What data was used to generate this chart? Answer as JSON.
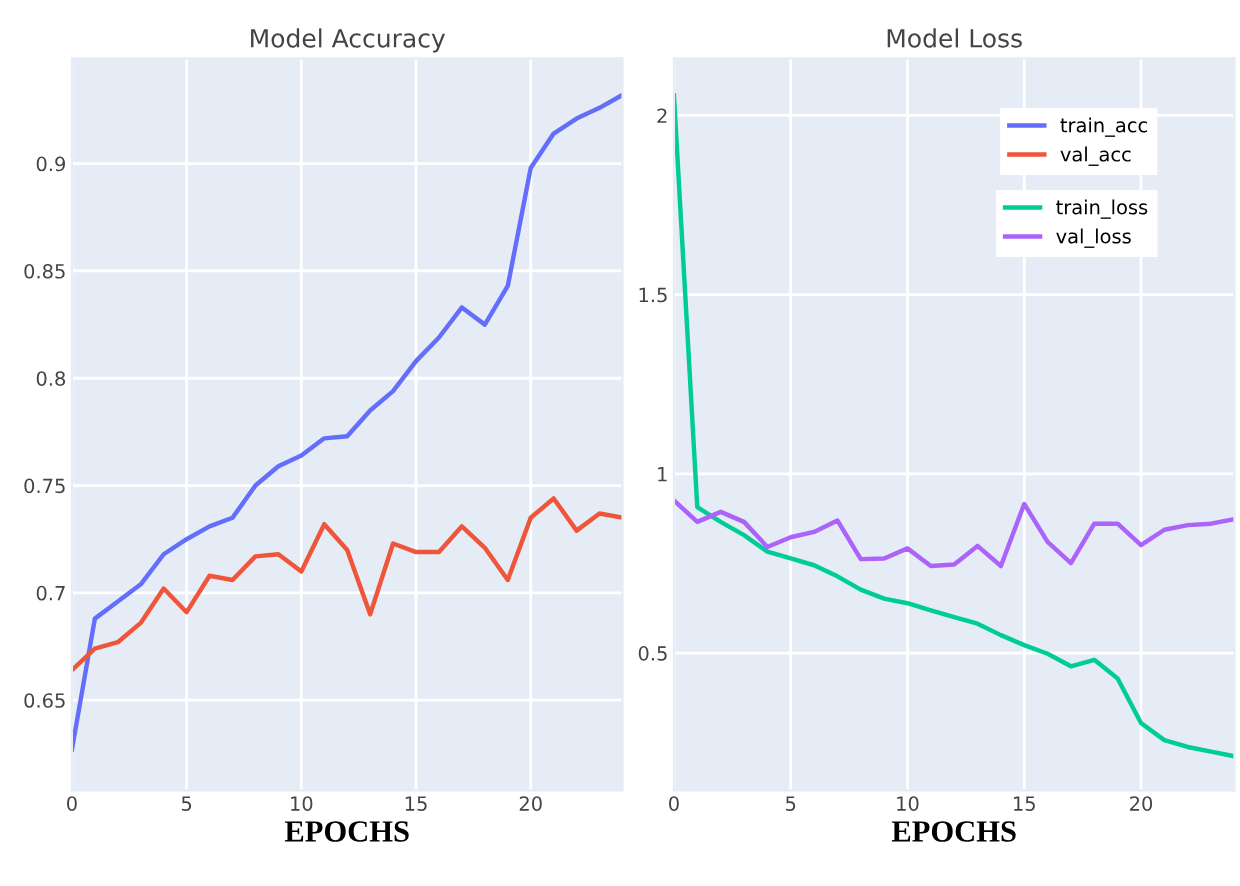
{
  "chart_data": [
    {
      "type": "line",
      "title": "Model Accuracy",
      "xlabel": "EPOCHS",
      "x": [
        0,
        1,
        2,
        3,
        4,
        5,
        6,
        7,
        8,
        9,
        10,
        11,
        12,
        13,
        14,
        15,
        16,
        17,
        18,
        19,
        20,
        21,
        22,
        23,
        24
      ],
      "series": [
        {
          "name": "train_acc",
          "color": "#636efa",
          "values": [
            0.627,
            0.688,
            0.696,
            0.704,
            0.718,
            0.725,
            0.731,
            0.735,
            0.75,
            0.759,
            0.764,
            0.772,
            0.773,
            0.785,
            0.794,
            0.808,
            0.819,
            0.833,
            0.825,
            0.843,
            0.898,
            0.914,
            0.921,
            0.926,
            0.932
          ]
        },
        {
          "name": "val_acc",
          "color": "#ef553b",
          "values": [
            0.664,
            0.674,
            0.677,
            0.686,
            0.702,
            0.691,
            0.708,
            0.706,
            0.717,
            0.718,
            0.71,
            0.732,
            0.72,
            0.69,
            0.723,
            0.719,
            0.719,
            0.731,
            0.721,
            0.706,
            0.735,
            0.744,
            0.729,
            0.737,
            0.735
          ]
        }
      ],
      "xlim": [
        0,
        24
      ],
      "xticks": [
        0,
        5,
        10,
        15,
        20
      ],
      "ylim": [
        0.608,
        0.949
      ],
      "yticks": [
        0.65,
        0.7,
        0.75,
        0.8,
        0.85,
        0.9
      ],
      "grid": true,
      "legend": "top right"
    },
    {
      "type": "line",
      "title": "Model Loss",
      "xlabel": "EPOCHS",
      "x": [
        0,
        1,
        2,
        3,
        4,
        5,
        6,
        7,
        8,
        9,
        10,
        11,
        12,
        13,
        14,
        15,
        16,
        17,
        18,
        19,
        20,
        21,
        22,
        23,
        24
      ],
      "series": [
        {
          "name": "train_loss",
          "color": "#00cc96",
          "values": [
            2.056,
            0.907,
            0.866,
            0.829,
            0.783,
            0.764,
            0.745,
            0.714,
            0.677,
            0.652,
            0.639,
            0.619,
            0.6,
            0.582,
            0.55,
            0.522,
            0.498,
            0.463,
            0.481,
            0.429,
            0.305,
            0.257,
            0.238,
            0.225,
            0.212
          ]
        },
        {
          "name": "val_loss",
          "color": "#ab63fa",
          "values": [
            0.926,
            0.866,
            0.894,
            0.866,
            0.796,
            0.823,
            0.838,
            0.87,
            0.762,
            0.764,
            0.792,
            0.743,
            0.747,
            0.799,
            0.743,
            0.916,
            0.81,
            0.751,
            0.861,
            0.861,
            0.801,
            0.844,
            0.857,
            0.861,
            0.874
          ]
        }
      ],
      "xlim": [
        0,
        24
      ],
      "xticks": [
        0,
        5,
        10,
        15,
        20
      ],
      "ylim": [
        0.117,
        2.159
      ],
      "yticks": [
        0.5,
        1,
        1.5,
        2
      ],
      "grid": true,
      "legend": "top right"
    }
  ]
}
